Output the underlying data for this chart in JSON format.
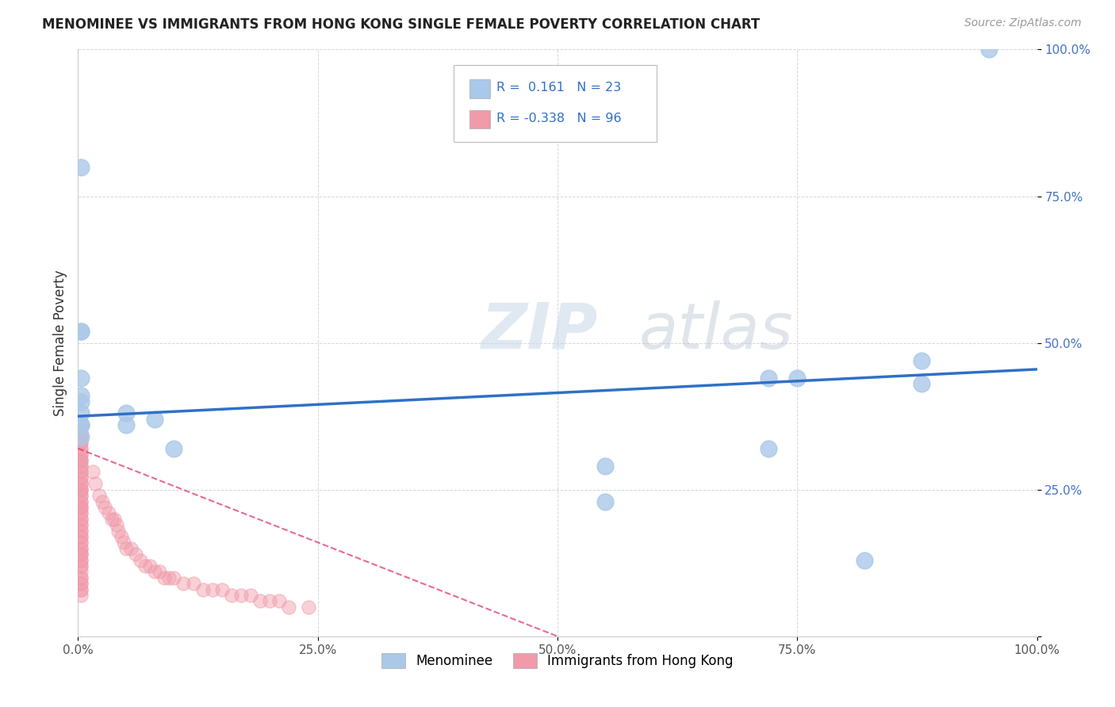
{
  "title": "MENOMINEE VS IMMIGRANTS FROM HONG KONG SINGLE FEMALE POVERTY CORRELATION CHART",
  "source": "Source: ZipAtlas.com",
  "ylabel": "Single Female Poverty",
  "legend_labels": [
    "Menominee",
    "Immigrants from Hong Kong"
  ],
  "r_menominee": "0.161",
  "n_menominee": "23",
  "r_hk": "-0.338",
  "n_hk": "96",
  "watermark_zip": "ZIP",
  "watermark_atlas": "atlas",
  "xlim": [
    0.0,
    1.0
  ],
  "ylim": [
    0.0,
    1.0
  ],
  "xtick_labels": [
    "0.0%",
    "25.0%",
    "50.0%",
    "75.0%",
    "100.0%"
  ],
  "xtick_vals": [
    0.0,
    0.25,
    0.5,
    0.75,
    1.0
  ],
  "ytick_labels": [
    "100.0%",
    "75.0%",
    "50.0%",
    "25.0%",
    ""
  ],
  "ytick_vals": [
    1.0,
    0.75,
    0.5,
    0.25,
    0.0
  ],
  "menominee_x": [
    0.003,
    0.003,
    0.003,
    0.003,
    0.003,
    0.003,
    0.003,
    0.003,
    0.003,
    0.003,
    0.05,
    0.05,
    0.08,
    0.1,
    0.55,
    0.55,
    0.72,
    0.72,
    0.75,
    0.82,
    0.88,
    0.88,
    0.95
  ],
  "menominee_y": [
    0.8,
    0.52,
    0.52,
    0.44,
    0.41,
    0.4,
    0.38,
    0.36,
    0.36,
    0.34,
    0.38,
    0.36,
    0.37,
    0.32,
    0.29,
    0.23,
    0.44,
    0.32,
    0.44,
    0.13,
    0.43,
    0.47,
    1.0
  ],
  "hk_x": [
    0.003,
    0.003,
    0.003,
    0.003,
    0.003,
    0.003,
    0.003,
    0.003,
    0.003,
    0.003,
    0.003,
    0.003,
    0.003,
    0.003,
    0.003,
    0.003,
    0.003,
    0.003,
    0.003,
    0.003,
    0.003,
    0.003,
    0.003,
    0.003,
    0.003,
    0.003,
    0.003,
    0.003,
    0.003,
    0.003,
    0.003,
    0.003,
    0.003,
    0.003,
    0.003,
    0.003,
    0.003,
    0.003,
    0.003,
    0.003,
    0.003,
    0.003,
    0.003,
    0.003,
    0.003,
    0.003,
    0.003,
    0.003,
    0.003,
    0.003,
    0.003,
    0.003,
    0.003,
    0.003,
    0.003,
    0.003,
    0.003,
    0.003,
    0.003,
    0.003,
    0.015,
    0.018,
    0.022,
    0.025,
    0.028,
    0.032,
    0.035,
    0.038,
    0.04,
    0.042,
    0.045,
    0.048,
    0.05,
    0.055,
    0.06,
    0.065,
    0.07,
    0.075,
    0.08,
    0.085,
    0.09,
    0.095,
    0.1,
    0.11,
    0.12,
    0.13,
    0.14,
    0.15,
    0.16,
    0.17,
    0.18,
    0.19,
    0.2,
    0.21,
    0.22,
    0.24
  ],
  "hk_y": [
    0.36,
    0.35,
    0.34,
    0.34,
    0.33,
    0.33,
    0.32,
    0.32,
    0.31,
    0.31,
    0.3,
    0.3,
    0.3,
    0.29,
    0.29,
    0.28,
    0.28,
    0.27,
    0.27,
    0.26,
    0.26,
    0.25,
    0.25,
    0.25,
    0.24,
    0.24,
    0.23,
    0.23,
    0.22,
    0.22,
    0.22,
    0.21,
    0.21,
    0.2,
    0.2,
    0.19,
    0.19,
    0.18,
    0.18,
    0.17,
    0.17,
    0.16,
    0.16,
    0.15,
    0.15,
    0.14,
    0.14,
    0.14,
    0.13,
    0.13,
    0.12,
    0.12,
    0.11,
    0.1,
    0.1,
    0.09,
    0.09,
    0.08,
    0.08,
    0.07,
    0.28,
    0.26,
    0.24,
    0.23,
    0.22,
    0.21,
    0.2,
    0.2,
    0.19,
    0.18,
    0.17,
    0.16,
    0.15,
    0.15,
    0.14,
    0.13,
    0.12,
    0.12,
    0.11,
    0.11,
    0.1,
    0.1,
    0.1,
    0.09,
    0.09,
    0.08,
    0.08,
    0.08,
    0.07,
    0.07,
    0.07,
    0.06,
    0.06,
    0.06,
    0.05,
    0.05
  ],
  "color_menominee": "#aac8e8",
  "color_hk": "#f09aaa",
  "line_color_menominee": "#3070c8",
  "line_color_hk": "#e03870",
  "background": "#ffffff",
  "grid_color": "#cccccc",
  "men_line_x0": 0.0,
  "men_line_y0": 0.375,
  "men_line_x1": 1.0,
  "men_line_y1": 0.455,
  "hk_line_x0": 0.0,
  "hk_line_y0": 0.32,
  "hk_line_x1": 0.5,
  "hk_line_y1": 0.0
}
